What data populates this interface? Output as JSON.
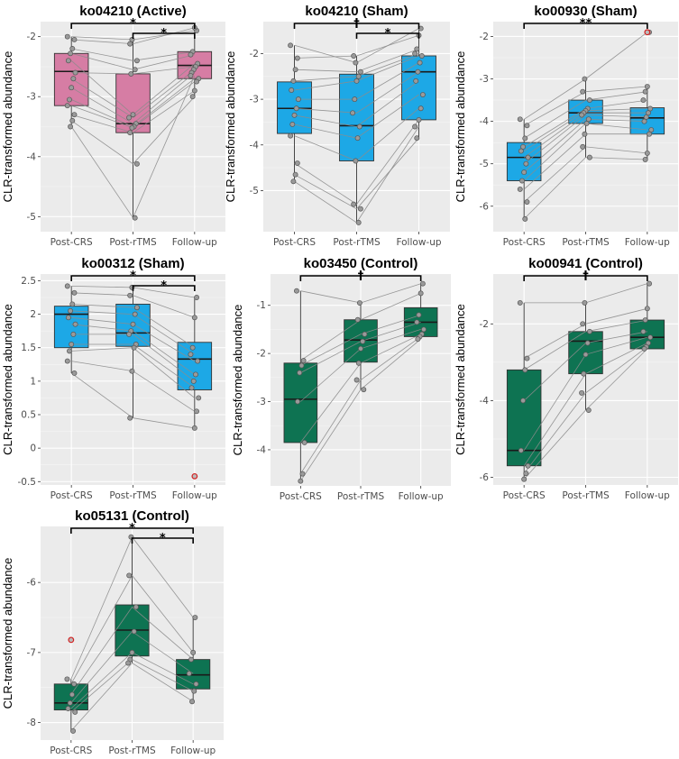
{
  "figure": {
    "ylabel": "CLR-transformed abundance"
  },
  "chart_data": [
    {
      "type": "box",
      "title": "ko04210 (Active)",
      "ylabel": "CLR-transformed abundance",
      "categories": [
        "Post-CRS",
        "Post-rTMS",
        "Follow-up"
      ],
      "color": "#d67da4",
      "ylim": [
        -5.25,
        -1.75
      ],
      "yticks": [
        -5,
        -4,
        -3,
        -2
      ],
      "boxes": [
        {
          "min": -3.5,
          "q1": -3.15,
          "median": -2.58,
          "q3": -2.28,
          "max": -2.0
        },
        {
          "min": -5.02,
          "q1": -3.6,
          "median": -3.45,
          "q3": -2.62,
          "max": -2.05
        },
        {
          "min": -3.0,
          "q1": -2.7,
          "median": -2.48,
          "q3": -2.25,
          "max": -1.85
        }
      ],
      "points": [
        [
          -2.0,
          -2.05,
          -1.9
        ],
        [
          -2.05,
          -2.12,
          -1.85
        ],
        [
          -2.2,
          -2.4,
          -2.25
        ],
        [
          -2.28,
          -2.55,
          -2.3
        ],
        [
          -2.4,
          -3.3,
          -2.45
        ],
        [
          -2.6,
          -2.62,
          -2.5
        ],
        [
          -2.7,
          -3.35,
          -2.55
        ],
        [
          -2.85,
          -3.45,
          -2.6
        ],
        [
          -3.05,
          -3.5,
          -2.7
        ],
        [
          -3.15,
          -3.52,
          -2.75
        ],
        [
          -3.3,
          -3.6,
          -2.9
        ],
        [
          -3.4,
          -4.12,
          -3.0
        ],
        [
          -3.5,
          -5.02,
          -2.65
        ]
      ],
      "outliers": [],
      "brackets": [
        {
          "from": 0,
          "to": 2,
          "label": "*",
          "level": 0
        },
        {
          "from": 1,
          "to": 2,
          "label": "*",
          "level": 1
        }
      ]
    },
    {
      "type": "box",
      "title": "ko04210 (Sham)",
      "ylabel": "",
      "categories": [
        "Post-CRS",
        "Post-rTMS",
        "Follow-up"
      ],
      "color": "#1da8e6",
      "ylim": [
        -5.9,
        -1.3
      ],
      "yticks": [
        -5,
        -4,
        -3,
        -2
      ],
      "boxes": [
        {
          "min": -4.8,
          "q1": -3.75,
          "median": -3.2,
          "q3": -2.62,
          "max": -1.82
        },
        {
          "min": -5.7,
          "q1": -4.35,
          "median": -3.58,
          "q3": -2.45,
          "max": -2.05
        },
        {
          "min": -3.85,
          "q1": -3.45,
          "median": -2.4,
          "q3": -2.05,
          "max": -1.45
        }
      ],
      "points": [
        [
          -1.82,
          -2.2,
          -1.45
        ],
        [
          -2.1,
          -2.05,
          -1.6
        ],
        [
          -2.35,
          -2.4,
          -1.9
        ],
        [
          -2.6,
          -2.5,
          -2.0
        ],
        [
          -2.8,
          -2.6,
          -2.05
        ],
        [
          -3.0,
          -3.0,
          -2.2
        ],
        [
          -3.2,
          -3.3,
          -2.4
        ],
        [
          -3.35,
          -3.6,
          -2.6
        ],
        [
          -3.55,
          -3.85,
          -2.9
        ],
        [
          -3.8,
          -4.35,
          -3.2
        ],
        [
          -4.4,
          -5.3,
          -3.45
        ],
        [
          -4.65,
          -5.4,
          -3.85
        ],
        [
          -4.8,
          -5.7,
          -3.6
        ]
      ],
      "outliers": [],
      "brackets": [
        {
          "from": 0,
          "to": 2,
          "label": "†",
          "level": 0
        },
        {
          "from": 1,
          "to": 2,
          "label": "*",
          "level": 1
        }
      ]
    },
    {
      "type": "box",
      "title": "ko00930 (Sham)",
      "ylabel": "",
      "categories": [
        "Post-CRS",
        "Post-rTMS",
        "Follow-up"
      ],
      "color": "#1da8e6",
      "ylim": [
        -6.6,
        -1.65
      ],
      "yticks": [
        -6,
        -5,
        -4,
        -3,
        -2
      ],
      "boxes": [
        {
          "min": -6.3,
          "q1": -5.4,
          "median": -4.85,
          "q3": -4.5,
          "max": -3.95
        },
        {
          "min": -4.85,
          "q1": -4.05,
          "median": -3.8,
          "q3": -3.5,
          "max": -3.0
        },
        {
          "min": -4.9,
          "q1": -4.3,
          "median": -3.92,
          "q3": -3.68,
          "max": -3.18
        }
      ],
      "points": [
        [
          -3.95,
          -3.0,
          -1.9
        ],
        [
          -4.1,
          -3.3,
          -3.18
        ],
        [
          -4.4,
          -3.5,
          -3.3
        ],
        [
          -4.6,
          -3.7,
          -3.5
        ],
        [
          -4.7,
          -3.75,
          -3.7
        ],
        [
          -4.85,
          -3.8,
          -3.8
        ],
        [
          -5.0,
          -3.85,
          -3.9
        ],
        [
          -5.2,
          -3.95,
          -4.0
        ],
        [
          -5.4,
          -4.05,
          -4.2
        ],
        [
          -5.6,
          -4.3,
          -4.3
        ],
        [
          -5.9,
          -4.6,
          -4.75
        ],
        [
          -6.3,
          -4.85,
          -4.9
        ]
      ],
      "outliers": [
        [
          2,
          -1.9
        ]
      ],
      "brackets": [
        {
          "from": 0,
          "to": 2,
          "label": "**",
          "level": 0
        }
      ]
    },
    {
      "type": "box",
      "title": "ko00312 (Sham)",
      "ylabel": "CLR-transformed abundance",
      "categories": [
        "Post-CRS",
        "Post-rTMS",
        "Follow-up"
      ],
      "color": "#1da8e6",
      "ylim": [
        -0.55,
        2.6
      ],
      "yticks": [
        -0.5,
        0.0,
        0.5,
        1.0,
        1.5,
        2.0,
        2.5
      ],
      "boxes": [
        {
          "min": 1.12,
          "q1": 1.5,
          "median": 2.0,
          "q3": 2.12,
          "max": 2.42
        },
        {
          "min": 0.45,
          "q1": 1.52,
          "median": 1.72,
          "q3": 2.15,
          "max": 2.4
        },
        {
          "min": 0.3,
          "q1": 0.87,
          "median": 1.33,
          "q3": 1.58,
          "max": 2.25
        }
      ],
      "points": [
        [
          2.42,
          2.4,
          2.25
        ],
        [
          2.32,
          2.28,
          1.95
        ],
        [
          2.15,
          2.1,
          1.5
        ],
        [
          2.05,
          2.0,
          1.4
        ],
        [
          1.95,
          1.85,
          1.3
        ],
        [
          1.85,
          1.75,
          1.1
        ],
        [
          1.7,
          1.7,
          1.0
        ],
        [
          1.55,
          1.55,
          0.9
        ],
        [
          1.45,
          1.5,
          0.75
        ],
        [
          1.3,
          1.15,
          0.55
        ],
        [
          1.12,
          0.45,
          0.3
        ]
      ],
      "outliers": [
        [
          2,
          -0.42
        ]
      ],
      "brackets": [
        {
          "from": 0,
          "to": 2,
          "label": "*",
          "level": 0
        },
        {
          "from": 1,
          "to": 2,
          "label": "*",
          "level": 1
        }
      ]
    },
    {
      "type": "box",
      "title": "ko03450 (Control)",
      "ylabel": "CLR-transformed abundance",
      "categories": [
        "Post-CRS",
        "Post-rTMS",
        "Follow-up"
      ],
      "color": "#0e7352",
      "ylim": [
        -4.75,
        -0.35
      ],
      "yticks": [
        -4,
        -3,
        -2,
        -1
      ],
      "boxes": [
        {
          "min": -4.65,
          "q1": -3.85,
          "median": -2.95,
          "q3": -2.2,
          "max": -0.7
        },
        {
          "min": -2.75,
          "q1": -2.18,
          "median": -1.72,
          "q3": -1.3,
          "max": -0.95
        },
        {
          "min": -1.7,
          "q1": -1.65,
          "median": -1.35,
          "q3": -1.05,
          "max": -0.55
        }
      ],
      "points": [
        [
          -0.7,
          -0.95,
          -0.55
        ],
        [
          -2.15,
          -1.3,
          -0.75
        ],
        [
          -2.25,
          -1.6,
          -1.2
        ],
        [
          -2.4,
          -1.75,
          -1.35
        ],
        [
          -3.0,
          -1.9,
          -1.5
        ],
        [
          -3.85,
          -2.2,
          -1.6
        ],
        [
          -4.5,
          -2.55,
          -1.65
        ],
        [
          -4.65,
          -2.75,
          -1.7
        ]
      ],
      "outliers": [],
      "brackets": [
        {
          "from": 0,
          "to": 2,
          "label": "†",
          "level": 0
        }
      ]
    },
    {
      "type": "box",
      "title": "ko00941 (Control)",
      "ylabel": "CLR-transformed abundance",
      "categories": [
        "Post-CRS",
        "Post-rTMS",
        "Follow-up"
      ],
      "color": "#0e7352",
      "ylim": [
        -6.2,
        -0.7
      ],
      "yticks": [
        -6,
        -4,
        -2
      ],
      "boxes": [
        {
          "min": -6.05,
          "q1": -5.7,
          "median": -5.3,
          "q3": -3.2,
          "max": -1.45
        },
        {
          "min": -4.25,
          "q1": -3.3,
          "median": -2.45,
          "q3": -2.2,
          "max": -1.45
        },
        {
          "min": -2.65,
          "q1": -2.65,
          "median": -2.35,
          "q3": -1.9,
          "max": -0.95
        }
      ],
      "points": [
        [
          -1.45,
          -1.45,
          -0.95
        ],
        [
          -2.9,
          -2.0,
          -1.6
        ],
        [
          -3.2,
          -2.2,
          -1.9
        ],
        [
          -4.0,
          -2.5,
          -2.2
        ],
        [
          -5.3,
          -2.8,
          -2.35
        ],
        [
          -5.7,
          -3.3,
          -2.5
        ],
        [
          -5.9,
          -3.8,
          -2.6
        ],
        [
          -6.05,
          -4.25,
          -2.65
        ]
      ],
      "outliers": [],
      "brackets": [
        {
          "from": 0,
          "to": 2,
          "label": "†",
          "level": 0
        }
      ]
    },
    {
      "type": "box",
      "title": "ko05131 (Control)",
      "ylabel": "CLR-transformed abundance",
      "categories": [
        "Post-CRS",
        "Post-rTMS",
        "Follow-up"
      ],
      "color": "#0e7352",
      "ylim": [
        -8.25,
        -5.2
      ],
      "yticks": [
        -8,
        -7,
        -6
      ],
      "boxes": [
        {
          "min": -8.12,
          "q1": -7.82,
          "median": -7.72,
          "q3": -7.45,
          "max": -7.38
        },
        {
          "min": -7.15,
          "q1": -7.05,
          "median": -6.68,
          "q3": -6.32,
          "max": -5.35
        },
        {
          "min": -7.7,
          "q1": -7.52,
          "median": -7.32,
          "q3": -7.1,
          "max": -6.5
        }
      ],
      "points": [
        [
          -7.38,
          -5.35,
          -6.5
        ],
        [
          -7.45,
          -5.9,
          -7.0
        ],
        [
          -7.6,
          -6.35,
          -7.1
        ],
        [
          -7.72,
          -6.7,
          -7.3
        ],
        [
          -7.8,
          -7.0,
          -7.45
        ],
        [
          -7.85,
          -7.1,
          -7.55
        ],
        [
          -8.12,
          -7.15,
          -7.7
        ]
      ],
      "outliers": [
        [
          0,
          -6.82
        ]
      ],
      "brackets": [
        {
          "from": 0,
          "to": 2,
          "label": "*",
          "level": 0
        },
        {
          "from": 1,
          "to": 2,
          "label": "*",
          "level": 1
        }
      ]
    }
  ]
}
